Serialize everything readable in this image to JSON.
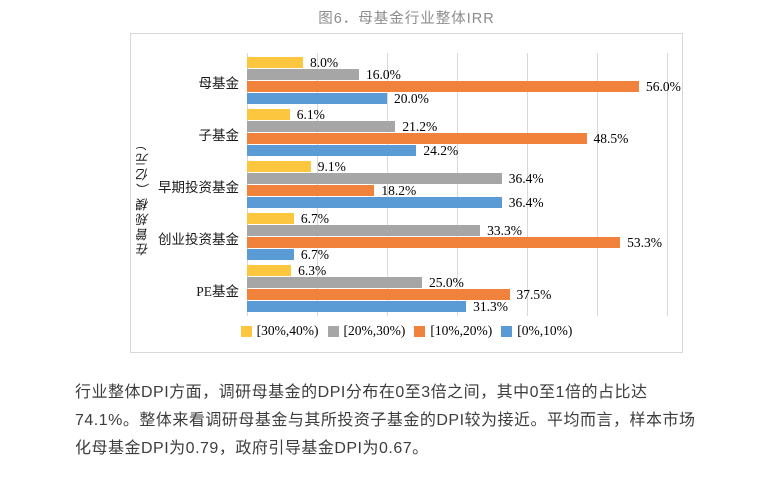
{
  "figure": {
    "title": "图6．母基金行业整体IRR"
  },
  "chart_data": {
    "type": "bar",
    "orientation": "horizontal",
    "title": "图6．母基金行业整体IRR",
    "ylabel": "在管规模（亿元）",
    "categories": [
      "母基金",
      "子基金",
      "早期投资基金",
      "创业投资基金",
      "PE基金"
    ],
    "series": [
      {
        "name": "[30%,40%)",
        "color": "#FDC63F",
        "values": [
          8.0,
          6.1,
          9.1,
          6.7,
          6.3
        ]
      },
      {
        "name": "[20%,30%)",
        "color": "#A6A6A6",
        "values": [
          16.0,
          21.2,
          36.4,
          33.3,
          25.0
        ]
      },
      {
        "name": "[10%,20%)",
        "color": "#F0823C",
        "values": [
          56.0,
          48.5,
          18.2,
          53.3,
          37.5
        ]
      },
      {
        "name": "[0%,10%)",
        "color": "#5B9BD5",
        "values": [
          20.0,
          24.2,
          36.4,
          6.7,
          31.3
        ]
      }
    ],
    "value_labels": [
      [
        "8.0%",
        "16.0%",
        "56.0%",
        "20.0%"
      ],
      [
        "6.1%",
        "21.2%",
        "48.5%",
        "24.2%"
      ],
      [
        "9.1%",
        "36.4%",
        "18.2%",
        "36.4%"
      ],
      [
        "6.7%",
        "33.3%",
        "53.3%",
        "6.7%"
      ],
      [
        "6.3%",
        "25.0%",
        "37.5%",
        "31.3%"
      ]
    ],
    "xlim": [
      0,
      60
    ],
    "gridline_step": 10,
    "grid": true,
    "x_tick_labels_visible": false,
    "legend_position": "bottom",
    "legend_entries": [
      "[30%,40%)",
      "[20%,30%)",
      "[10%,20%)",
      "[0%,10%)"
    ]
  },
  "paragraph": {
    "lines": [
      "行业整体DPI方面，调研母基金的DPI分布在0至3倍之间，其中0至1倍的占比达",
      "74.1%。整体来看调研母基金与其所投资子基金的DPI较为接近。平均而言，样本市场",
      "化母基金DPI为0.79，政府引导基金DPI为0.67。"
    ]
  }
}
